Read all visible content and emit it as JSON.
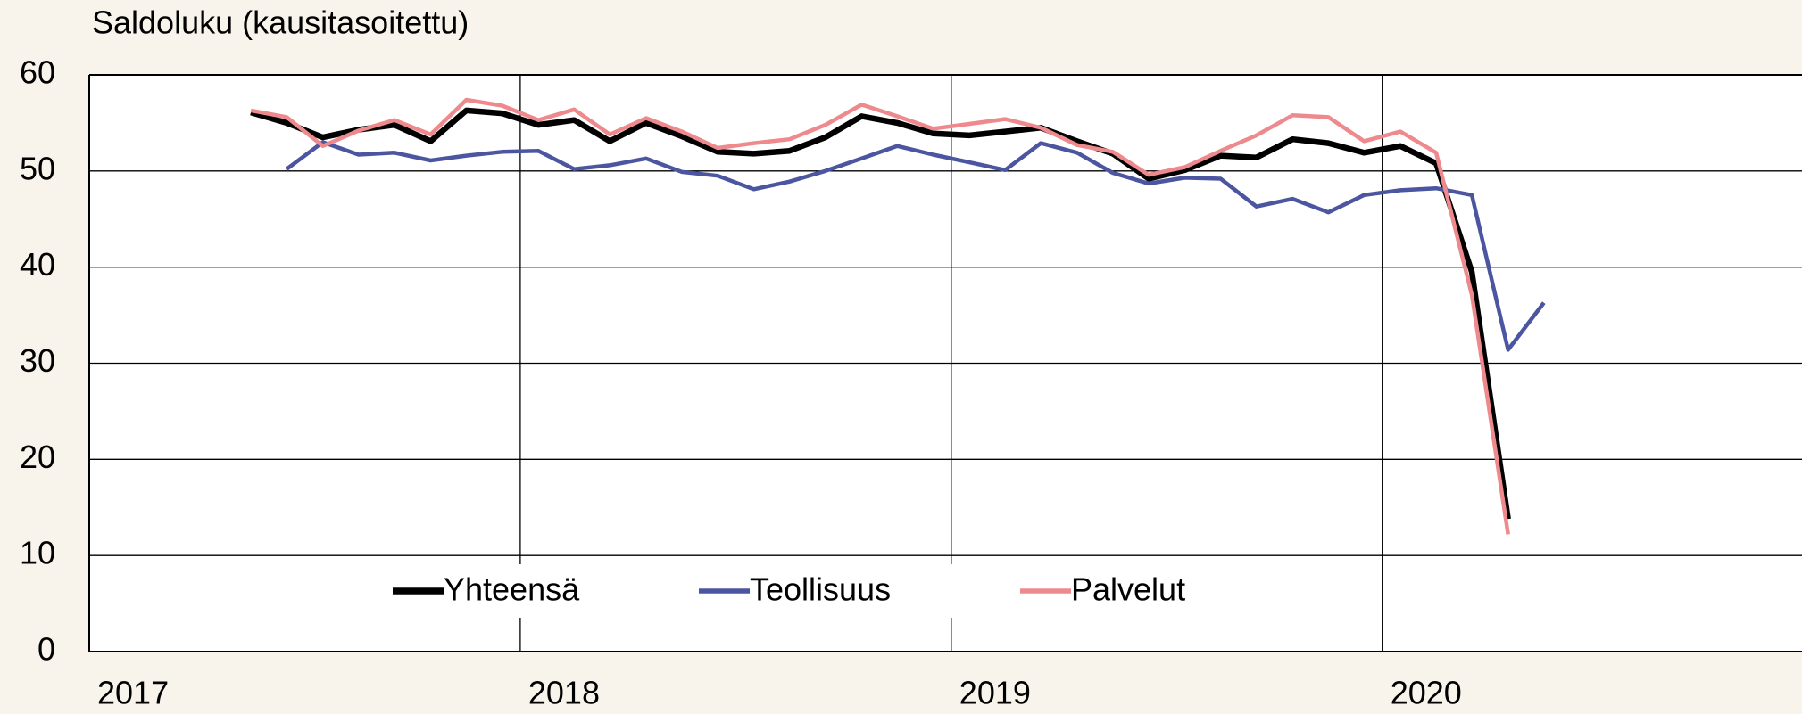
{
  "chart_data": {
    "type": "line",
    "ylabel": "Saldoluku (kausitasoitettu)",
    "x": [
      2017.375,
      2017.458,
      2017.542,
      2017.625,
      2017.708,
      2017.792,
      2017.875,
      2017.958,
      2018.042,
      2018.125,
      2018.208,
      2018.292,
      2018.375,
      2018.458,
      2018.542,
      2018.625,
      2018.708,
      2018.792,
      2018.875,
      2018.958,
      2019.042,
      2019.125,
      2019.208,
      2019.292,
      2019.375,
      2019.458,
      2019.542,
      2019.625,
      2019.708,
      2019.792,
      2019.875,
      2019.958,
      2020.042,
      2020.125,
      2020.208,
      2020.292,
      2020.375
    ],
    "series": [
      {
        "name": "Yhteensä",
        "color": "#000000",
        "values": [
          56.1,
          55.0,
          53.5,
          54.3,
          54.8,
          53.1,
          56.3,
          56.0,
          54.8,
          55.3,
          53.1,
          55.0,
          53.6,
          52.0,
          51.8,
          52.1,
          53.5,
          55.7,
          55.0,
          53.9,
          53.7,
          54.1,
          54.5,
          53.1,
          51.8,
          49.2,
          50.1,
          51.6,
          51.4,
          53.3,
          52.9,
          51.9,
          52.6,
          50.8,
          39.5,
          13.8,
          null
        ]
      },
      {
        "name": "Teollisuus",
        "color": "#4b55a0",
        "values": [
          null,
          50.2,
          53.0,
          51.7,
          51.9,
          51.1,
          51.6,
          52.0,
          52.1,
          50.2,
          50.6,
          51.3,
          49.9,
          49.5,
          48.1,
          48.9,
          50.0,
          51.3,
          52.6,
          51.7,
          50.9,
          50.1,
          52.9,
          51.9,
          49.8,
          48.7,
          49.3,
          49.2,
          46.3,
          47.1,
          45.7,
          47.5,
          48.0,
          48.2,
          47.5,
          31.4,
          36.3
        ]
      },
      {
        "name": "Palvelut",
        "color": "#ee8a8e",
        "values": [
          56.3,
          55.6,
          52.6,
          54.2,
          55.3,
          53.8,
          57.4,
          56.8,
          55.3,
          56.4,
          53.8,
          55.5,
          54.1,
          52.4,
          52.9,
          53.3,
          54.8,
          56.9,
          55.7,
          54.4,
          54.9,
          55.4,
          54.5,
          52.7,
          52.0,
          49.6,
          50.4,
          52.1,
          53.7,
          55.8,
          55.6,
          53.1,
          54.1,
          51.9,
          37.1,
          12.2,
          null
        ]
      }
    ],
    "xlim": [
      2017,
      2021
    ],
    "xticks": [
      2017,
      2018,
      2019,
      2020
    ],
    "ylim": [
      0,
      60
    ],
    "yticks": [
      0,
      10,
      20,
      30,
      40,
      50,
      60
    ],
    "grid": true,
    "legend": "bottom"
  }
}
